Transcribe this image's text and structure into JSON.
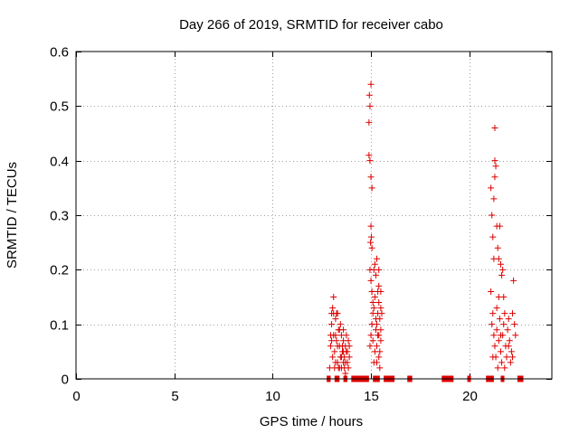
{
  "chart_data": {
    "type": "scatter",
    "title": "Day 266 of 2019, SRMTID for receiver cabo",
    "xlabel": "GPS time / hours",
    "ylabel": "SRMTID / TECUs",
    "xlim": [
      0,
      24.2
    ],
    "ylim": [
      0,
      0.6
    ],
    "xticks": [
      0,
      5,
      10,
      15,
      20
    ],
    "yticks": [
      0,
      0.1,
      0.2,
      0.3,
      0.4,
      0.5,
      0.6
    ],
    "grid": true,
    "marker": "+",
    "color": "#dd0000",
    "series": [
      {
        "name": "SRMTID",
        "points": [
          [
            12.9,
            0.02
          ],
          [
            12.95,
            0.06
          ],
          [
            13.0,
            0.1
          ],
          [
            13.05,
            0.13
          ],
          [
            13.1,
            0.15
          ],
          [
            13.1,
            0.08
          ],
          [
            13.15,
            0.05
          ],
          [
            13.2,
            0.11
          ],
          [
            13.25,
            0.07
          ],
          [
            13.3,
            0.12
          ],
          [
            13.3,
            0.03
          ],
          [
            13.35,
            0.09
          ],
          [
            13.4,
            0.06
          ],
          [
            13.45,
            0.04
          ],
          [
            13.5,
            0.08
          ],
          [
            13.5,
            0.02
          ],
          [
            13.55,
            0.05
          ],
          [
            13.6,
            0.07
          ],
          [
            13.6,
            0.03
          ],
          [
            13.65,
            0.04
          ],
          [
            13.7,
            0.06
          ],
          [
            13.7,
            0.01
          ],
          [
            13.75,
            0.05
          ],
          [
            13.8,
            0.03
          ],
          [
            13.85,
            0.02
          ],
          [
            13.9,
            0.04
          ],
          [
            12.95,
            0.08
          ],
          [
            13.05,
            0.04
          ],
          [
            13.15,
            0.02
          ],
          [
            13.25,
            0.12
          ],
          [
            13.35,
            0.02
          ],
          [
            13.45,
            0.1
          ],
          [
            13.55,
            0.06
          ],
          [
            13.65,
            0.02
          ],
          [
            13.75,
            0.08
          ],
          [
            13.85,
            0.07
          ],
          [
            13.0,
            0.07
          ],
          [
            13.2,
            0.03
          ],
          [
            13.4,
            0.02
          ],
          [
            13.6,
            0.09
          ],
          [
            13.8,
            0.05
          ],
          [
            13.1,
            0.12
          ],
          [
            13.3,
            0.06
          ],
          [
            13.5,
            0.04
          ],
          [
            13.7,
            0.03
          ],
          [
            13.9,
            0.06
          ],
          [
            13.0,
            0.12
          ],
          [
            13.2,
            0.08
          ],
          [
            13.4,
            0.09
          ],
          [
            13.6,
            0.05
          ],
          [
            14.9,
            0.41
          ],
          [
            14.9,
            0.47
          ],
          [
            14.92,
            0.52
          ],
          [
            14.95,
            0.5
          ],
          [
            15.0,
            0.54
          ],
          [
            15.0,
            0.37
          ],
          [
            15.05,
            0.35
          ],
          [
            15.0,
            0.28
          ],
          [
            15.02,
            0.26
          ],
          [
            15.05,
            0.24
          ],
          [
            14.95,
            0.2
          ],
          [
            15.0,
            0.18
          ],
          [
            15.05,
            0.16
          ],
          [
            15.1,
            0.14
          ],
          [
            15.1,
            0.12
          ],
          [
            15.15,
            0.2
          ],
          [
            15.2,
            0.21
          ],
          [
            15.25,
            0.19
          ],
          [
            15.3,
            0.22
          ],
          [
            15.35,
            0.16
          ],
          [
            15.4,
            0.14
          ],
          [
            15.45,
            0.11
          ],
          [
            15.5,
            0.09
          ],
          [
            15.3,
            0.06
          ],
          [
            15.35,
            0.08
          ],
          [
            15.4,
            0.04
          ],
          [
            15.45,
            0.02
          ],
          [
            15.5,
            0.07
          ],
          [
            15.25,
            0.11
          ],
          [
            15.2,
            0.05
          ],
          [
            15.15,
            0.03
          ],
          [
            15.1,
            0.07
          ],
          [
            15.05,
            0.1
          ],
          [
            15.0,
            0.08
          ],
          [
            14.95,
            0.06
          ],
          [
            15.55,
            0.12
          ],
          [
            15.5,
            0.16
          ],
          [
            15.4,
            0.2
          ],
          [
            15.3,
            0.1
          ],
          [
            15.2,
            0.15
          ],
          [
            15.4,
            0.17
          ],
          [
            15.45,
            0.05
          ],
          [
            15.35,
            0.12
          ],
          [
            15.25,
            0.09
          ],
          [
            15.15,
            0.13
          ],
          [
            15.3,
            0.03
          ],
          [
            14.98,
            0.25
          ],
          [
            14.95,
            0.4
          ],
          [
            15.5,
            0.13
          ],
          [
            15.4,
            0.08
          ],
          [
            21.1,
            0.35
          ],
          [
            21.15,
            0.3
          ],
          [
            21.2,
            0.26
          ],
          [
            21.25,
            0.33
          ],
          [
            21.3,
            0.46
          ],
          [
            21.3,
            0.4
          ],
          [
            21.35,
            0.39
          ],
          [
            21.3,
            0.37
          ],
          [
            21.4,
            0.28
          ],
          [
            21.45,
            0.24
          ],
          [
            21.5,
            0.22
          ],
          [
            21.55,
            0.28
          ],
          [
            21.6,
            0.21
          ],
          [
            21.65,
            0.19
          ],
          [
            21.7,
            0.2
          ],
          [
            21.75,
            0.15
          ],
          [
            21.1,
            0.16
          ],
          [
            21.15,
            0.1
          ],
          [
            21.2,
            0.12
          ],
          [
            21.25,
            0.08
          ],
          [
            21.3,
            0.06
          ],
          [
            21.35,
            0.04
          ],
          [
            21.4,
            0.09
          ],
          [
            21.45,
            0.02
          ],
          [
            21.5,
            0.07
          ],
          [
            21.55,
            0.11
          ],
          [
            21.6,
            0.05
          ],
          [
            21.65,
            0.03
          ],
          [
            21.7,
            0.08
          ],
          [
            21.75,
            0.1
          ],
          [
            21.8,
            0.12
          ],
          [
            21.85,
            0.06
          ],
          [
            21.9,
            0.04
          ],
          [
            21.95,
            0.09
          ],
          [
            22.0,
            0.11
          ],
          [
            22.05,
            0.07
          ],
          [
            22.1,
            0.03
          ],
          [
            22.15,
            0.05
          ],
          [
            22.2,
            0.12
          ],
          [
            22.25,
            0.18
          ],
          [
            22.3,
            0.1
          ],
          [
            22.35,
            0.08
          ],
          [
            21.2,
            0.04
          ],
          [
            21.4,
            0.13
          ],
          [
            21.6,
            0.08
          ],
          [
            21.8,
            0.02
          ],
          [
            22.0,
            0.06
          ],
          [
            22.2,
            0.04
          ],
          [
            21.5,
            0.15
          ],
          [
            21.25,
            0.22
          ]
        ],
        "zeros": [
          [
            12.75,
            12.95
          ],
          [
            13.15,
            13.4
          ],
          [
            13.6,
            13.8
          ],
          [
            14.0,
            14.9
          ],
          [
            15.1,
            15.45
          ],
          [
            15.65,
            16.2
          ],
          [
            16.85,
            17.1
          ],
          [
            18.6,
            19.2
          ],
          [
            19.9,
            20.05
          ],
          [
            20.85,
            21.25
          ],
          [
            21.6,
            21.75
          ],
          [
            22.45,
            22.75
          ]
        ]
      }
    ]
  }
}
